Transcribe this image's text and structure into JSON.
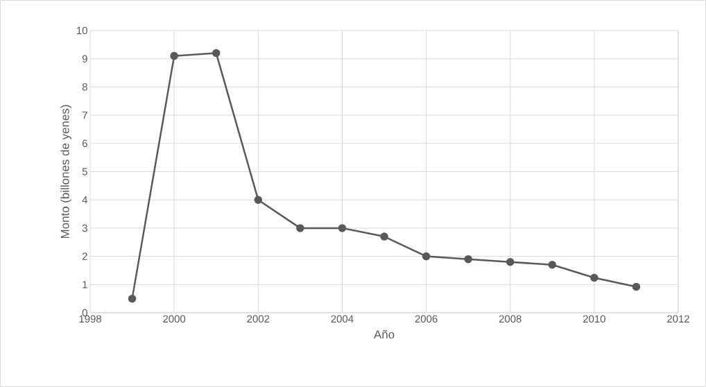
{
  "chart_data": {
    "type": "line",
    "xlabel": "Año",
    "ylabel": "Monto (billones de yenes)",
    "x": [
      1999,
      2000,
      2001,
      2002,
      2003,
      2004,
      2005,
      2006,
      2007,
      2008,
      2009,
      2010,
      2011
    ],
    "series": [
      {
        "color": "#595959",
        "values": [
          0.5,
          9.1,
          9.2,
          4,
          3,
          3,
          2.7,
          2,
          1.9,
          1.8,
          1.7,
          1.24,
          0.92
        ]
      }
    ],
    "xlim": [
      1998,
      2012
    ],
    "xticks": [
      1998,
      2000,
      2002,
      2004,
      2006,
      2008,
      2010,
      2012
    ],
    "ylim": [
      0,
      10
    ],
    "yticks": [
      0,
      1,
      2,
      3,
      4,
      5,
      6,
      7,
      8,
      9,
      10
    ],
    "grid": true,
    "marker": "circle",
    "legend": false
  }
}
